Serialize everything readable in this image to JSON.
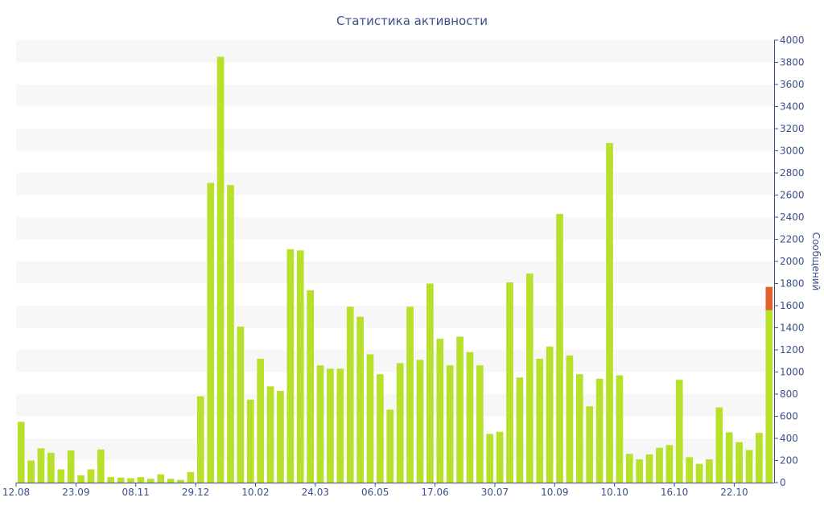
{
  "chart_data": {
    "type": "bar",
    "title": "Статистика активности",
    "ylabel": "Сообщений",
    "xlabel": "",
    "ylim": [
      0,
      4000
    ],
    "ytick_step": 200,
    "yaxis_side": "right",
    "grid": "horizontal-bands",
    "x_tick_labels": [
      {
        "index": 0,
        "label": "12.08"
      },
      {
        "index": 6,
        "label": "23.09"
      },
      {
        "index": 12,
        "label": "08.11"
      },
      {
        "index": 18,
        "label": "29.12"
      },
      {
        "index": 24,
        "label": "10.02"
      },
      {
        "index": 30,
        "label": "24.03"
      },
      {
        "index": 36,
        "label": "06.05"
      },
      {
        "index": 42,
        "label": "17.06"
      },
      {
        "index": 48,
        "label": "30.07"
      },
      {
        "index": 54,
        "label": "10.09"
      },
      {
        "index": 60,
        "label": "10.10"
      },
      {
        "index": 66,
        "label": "16.10"
      },
      {
        "index": 72,
        "label": "22.10"
      }
    ],
    "values": [
      550,
      200,
      310,
      270,
      120,
      290,
      65,
      120,
      300,
      50,
      45,
      40,
      50,
      35,
      75,
      35,
      25,
      95,
      780,
      2710,
      3850,
      2690,
      1410,
      750,
      1120,
      870,
      830,
      2110,
      2100,
      1740,
      1060,
      1030,
      1030,
      1590,
      1500,
      1160,
      980,
      660,
      1080,
      1590,
      1110,
      1800,
      1300,
      1060,
      1320,
      1180,
      1060,
      440,
      460,
      1810,
      950,
      1890,
      1120,
      1230,
      2430,
      1150,
      980,
      690,
      940,
      3070,
      970,
      260,
      210,
      255,
      315,
      340,
      930,
      230,
      170,
      210,
      680,
      455,
      365,
      295,
      450,
      1560
    ],
    "last_bar_extra": 210,
    "colors": {
      "bar": "#b6e02a",
      "bar_extra": "#e2622f",
      "band": "#f7f7f7",
      "axis": "#3b4f8a",
      "text": "#3b4f8a"
    }
  }
}
